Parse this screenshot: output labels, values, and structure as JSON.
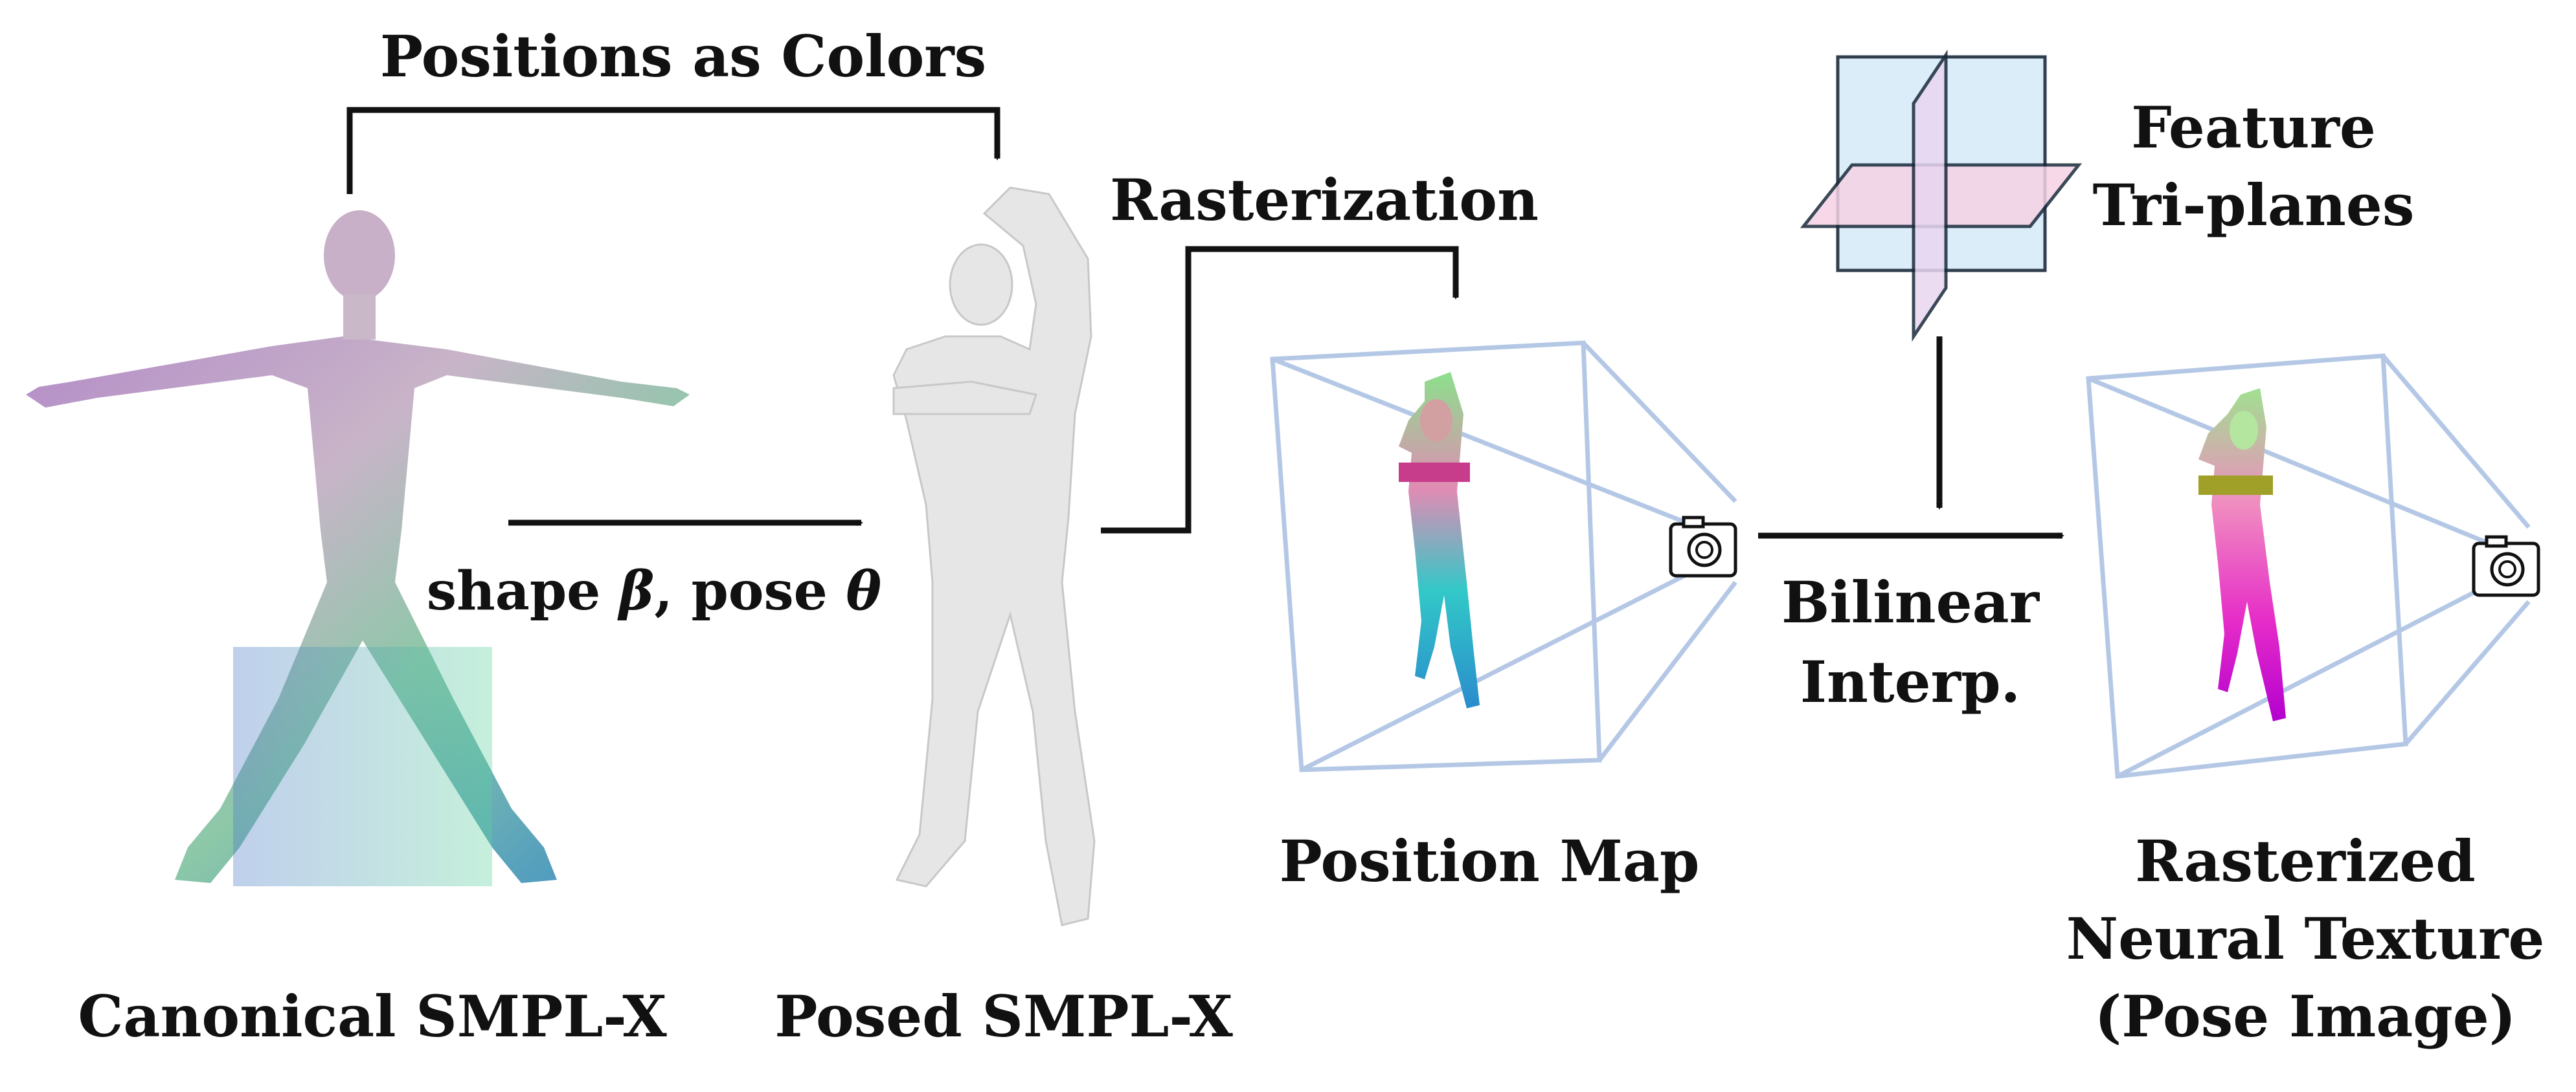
{
  "labels": {
    "positions_as_colors": "Positions as Colors",
    "rasterization": "Rasterization",
    "feature_line1": "Feature",
    "feature_line2": "Tri-planes",
    "shape_pose_prefix": "shape ",
    "beta": "β",
    "shape_pose_mid": ", pose ",
    "theta": "θ",
    "bilinear_line1": "Bilinear",
    "bilinear_line2": "Interp.",
    "position_map": "Position Map",
    "canonical": "Canonical SMPL-X",
    "posed": "Posed SMPL-X",
    "rasterized_line1": "Rasterized",
    "rasterized_line2": "Neural Texture",
    "rasterized_line3": "(Pose Image)"
  },
  "icons": {
    "camera": "camera-icon",
    "body": "human-body-figure",
    "triplane": "tri-plane-icon"
  },
  "colors": {
    "text": "#111111",
    "arrow": "#111111",
    "frustum": "#b4c8e6",
    "plane_blue": "#d9ecfa",
    "plane_pink": "#f5d2e6",
    "posed_body": "#e6e6e6"
  }
}
